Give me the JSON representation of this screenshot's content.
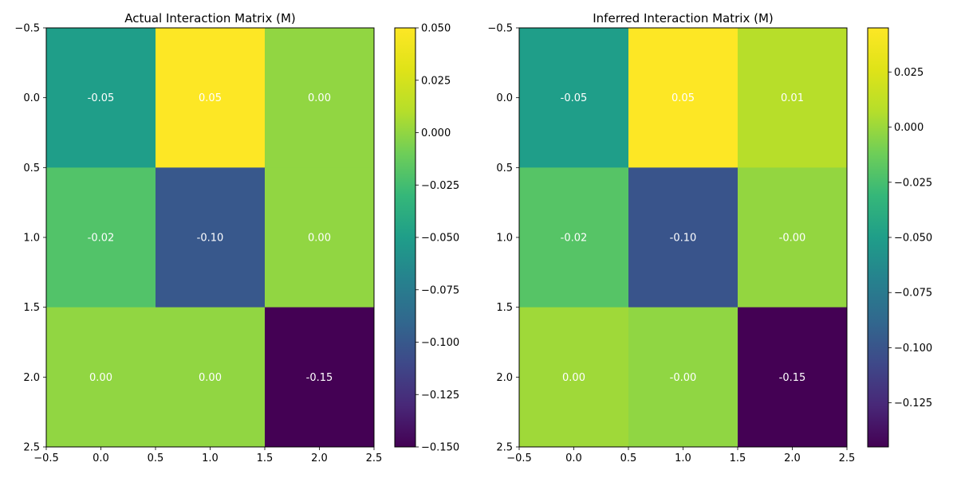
{
  "chart_data": [
    {
      "type": "heatmap",
      "title": "Actual Interaction Matrix (M)",
      "xlabel": "",
      "ylabel": "",
      "xlim": [
        -0.5,
        2.5
      ],
      "ylim": [
        2.5,
        -0.5
      ],
      "x_ticks": [
        "−0.5",
        "0.0",
        "0.5",
        "1.0",
        "1.5",
        "2.0",
        "2.5"
      ],
      "y_ticks": [
        "−0.5",
        "0.0",
        "0.5",
        "1.0",
        "1.5",
        "2.0",
        "2.5"
      ],
      "values": [
        [
          -0.05,
          0.05,
          0.0
        ],
        [
          -0.02,
          -0.1,
          0.0
        ],
        [
          0.0,
          0.0,
          -0.15
        ]
      ],
      "labels": [
        [
          "-0.05",
          "0.05",
          "0.00"
        ],
        [
          "-0.02",
          "-0.10",
          "0.00"
        ],
        [
          "0.00",
          "0.00",
          "-0.15"
        ]
      ],
      "colormap": "viridis",
      "vmin": -0.15,
      "vmax": 0.05,
      "colorbar_ticks": [
        {
          "value": 0.05,
          "label": "0.050"
        },
        {
          "value": 0.025,
          "label": "0.025"
        },
        {
          "value": 0.0,
          "label": "0.000"
        },
        {
          "value": -0.025,
          "label": "−0.025"
        },
        {
          "value": -0.05,
          "label": "−0.050"
        },
        {
          "value": -0.075,
          "label": "−0.075"
        },
        {
          "value": -0.1,
          "label": "−0.100"
        },
        {
          "value": -0.125,
          "label": "−0.125"
        },
        {
          "value": -0.15,
          "label": "−0.150"
        }
      ],
      "grid": false,
      "colorbar_position": "right"
    },
    {
      "type": "heatmap",
      "title": "Inferred Interaction Matrix (M)",
      "xlabel": "",
      "ylabel": "",
      "xlim": [
        -0.5,
        2.5
      ],
      "ylim": [
        2.5,
        -0.5
      ],
      "x_ticks": [
        "−0.5",
        "0.0",
        "0.5",
        "1.0",
        "1.5",
        "2.0",
        "2.5"
      ],
      "y_ticks": [
        "−0.5",
        "0.0",
        "0.5",
        "1.0",
        "1.5",
        "2.0",
        "2.5"
      ],
      "values": [
        [
          -0.05,
          0.045,
          0.008
        ],
        [
          -0.02,
          -0.1,
          -0.002
        ],
        [
          0.001,
          -0.003,
          -0.145
        ]
      ],
      "labels": [
        [
          "-0.05",
          "0.05",
          "0.01"
        ],
        [
          "-0.02",
          "-0.10",
          "-0.00"
        ],
        [
          "0.00",
          "-0.00",
          "-0.15"
        ]
      ],
      "colormap": "viridis",
      "vmin": -0.145,
      "vmax": 0.045,
      "colorbar_ticks": [
        {
          "value": 0.025,
          "label": "0.025"
        },
        {
          "value": 0.0,
          "label": "0.000"
        },
        {
          "value": -0.025,
          "label": "−0.025"
        },
        {
          "value": -0.05,
          "label": "−0.050"
        },
        {
          "value": -0.075,
          "label": "−0.075"
        },
        {
          "value": -0.1,
          "label": "−0.100"
        },
        {
          "value": -0.125,
          "label": "−0.125"
        }
      ],
      "grid": false,
      "colorbar_position": "right"
    }
  ]
}
